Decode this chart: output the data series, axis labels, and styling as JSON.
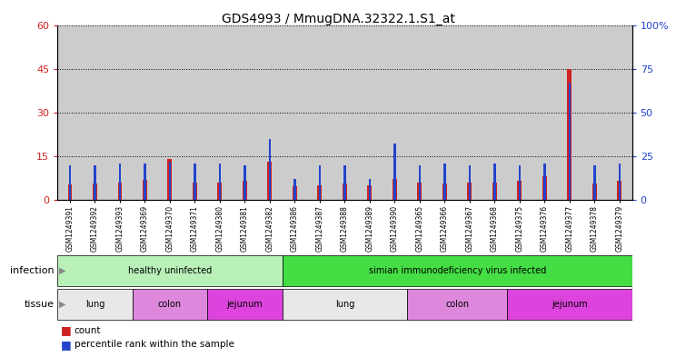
{
  "title": "GDS4993 / MmugDNA.32322.1.S1_at",
  "samples": [
    "GSM1249391",
    "GSM1249392",
    "GSM1249393",
    "GSM1249369",
    "GSM1249370",
    "GSM1249371",
    "GSM1249380",
    "GSM1249381",
    "GSM1249382",
    "GSM1249386",
    "GSM1249387",
    "GSM1249388",
    "GSM1249389",
    "GSM1249390",
    "GSM1249365",
    "GSM1249366",
    "GSM1249367",
    "GSM1249368",
    "GSM1249375",
    "GSM1249376",
    "GSM1249377",
    "GSM1249378",
    "GSM1249379"
  ],
  "counts": [
    5.2,
    5.5,
    6.0,
    7.0,
    14.2,
    6.0,
    6.0,
    6.5,
    13.0,
    4.8,
    5.0,
    5.5,
    5.0,
    7.2,
    6.0,
    5.5,
    6.0,
    6.0,
    6.5,
    8.0,
    45.0,
    5.5,
    6.5
  ],
  "percentiles_pct": [
    20,
    20,
    21,
    21,
    22,
    21,
    21,
    20,
    35,
    12,
    20,
    20,
    12,
    32,
    20,
    21,
    20,
    21,
    20,
    21,
    67,
    20,
    21
  ],
  "ylim_left": [
    0,
    60
  ],
  "ylim_right": [
    0,
    100
  ],
  "yticks_left": [
    0,
    15,
    30,
    45,
    60
  ],
  "yticks_right": [
    0,
    25,
    50,
    75,
    100
  ],
  "bar_color_count": "#cc2222",
  "bar_color_pct": "#2244cc",
  "col_bg_color": "#cccccc",
  "chart_bg_color": "#ffffff",
  "infection_groups": [
    {
      "label": "healthy uninfected",
      "start": 0,
      "end": 8,
      "color": "#b8f0b8"
    },
    {
      "label": "simian immunodeficiency virus infected",
      "start": 9,
      "end": 22,
      "color": "#44dd44"
    }
  ],
  "tissue_groups": [
    {
      "label": "lung",
      "start": 0,
      "end": 2,
      "color": "#e8e8e8"
    },
    {
      "label": "colon",
      "start": 3,
      "end": 5,
      "color": "#dd88dd"
    },
    {
      "label": "jejunum",
      "start": 6,
      "end": 8,
      "color": "#dd44dd"
    },
    {
      "label": "lung",
      "start": 9,
      "end": 13,
      "color": "#e8e8e8"
    },
    {
      "label": "colon",
      "start": 14,
      "end": 17,
      "color": "#dd88dd"
    },
    {
      "label": "jejunum",
      "start": 18,
      "end": 22,
      "color": "#dd44dd"
    }
  ],
  "legend_count_label": "count",
  "legend_pct_label": "percentile rank within the sample",
  "infection_label": "infection",
  "tissue_label": "tissue",
  "arrow_color": "#888888"
}
